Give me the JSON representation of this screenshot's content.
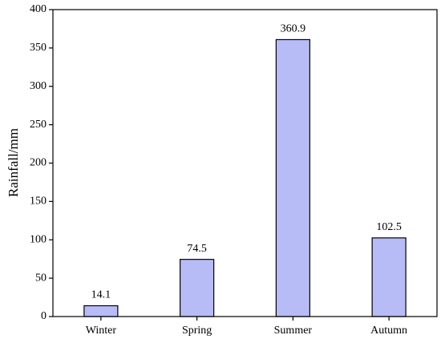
{
  "chart_data": {
    "type": "bar",
    "ylabel": "Rainfall/mm",
    "categories": [
      "Winter",
      "Spring",
      "Summer",
      "Autumn"
    ],
    "values": [
      14.1,
      74.5,
      360.9,
      102.5
    ],
    "color": "#b7bcf7",
    "ylim": [
      0,
      400
    ],
    "yticks": [
      0,
      50,
      100,
      150,
      200,
      250,
      300,
      350,
      400
    ],
    "grid": false
  }
}
